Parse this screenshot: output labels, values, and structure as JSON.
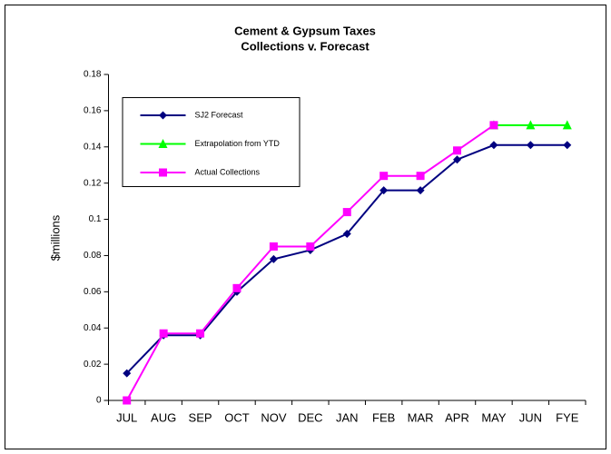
{
  "chart_data": {
    "type": "line",
    "title": "Cement & Gypsum Taxes",
    "subtitle": "Collections v. Forecast",
    "y_label": "$millions",
    "categories": [
      "JUL",
      "AUG",
      "SEP",
      "OCT",
      "NOV",
      "DEC",
      "JAN",
      "FEB",
      "MAR",
      "APR",
      "MAY",
      "JUN",
      "FYE"
    ],
    "series": [
      {
        "name": "SJ2 Forecast",
        "color": "#000080",
        "marker": "diamond",
        "values": [
          0.015,
          0.036,
          0.036,
          0.06,
          0.078,
          0.083,
          0.092,
          0.116,
          0.116,
          0.133,
          0.141,
          0.141,
          0.141
        ]
      },
      {
        "name": "Extrapolation from YTD",
        "color": "#00ff00",
        "marker": "triangle",
        "values": [
          null,
          null,
          null,
          null,
          null,
          null,
          null,
          null,
          null,
          null,
          0.152,
          0.152,
          0.152
        ]
      },
      {
        "name": "Actual Collections",
        "color": "#ff00ff",
        "marker": "square",
        "values": [
          0,
          0.037,
          0.037,
          0.062,
          0.085,
          0.085,
          0.104,
          0.124,
          0.124,
          0.138,
          0.152,
          null,
          null
        ]
      }
    ],
    "ylim": [
      0,
      0.18
    ],
    "yticks": [
      0,
      0.02,
      0.04,
      0.06,
      0.08,
      0.1,
      0.12,
      0.14,
      0.16,
      0.18
    ],
    "grid": false,
    "legend": "upper left"
  }
}
